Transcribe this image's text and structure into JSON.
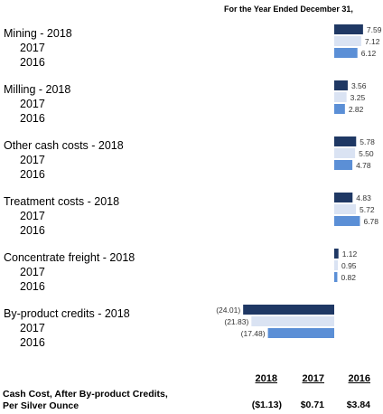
{
  "chart_data": {
    "type": "bar",
    "orientation": "horizontal",
    "header": "For the Year Ended December 31,",
    "year_labels": [
      "2017",
      "2016"
    ],
    "categories": [
      {
        "label": "Mining  - 2018",
        "values": [
          7.59,
          7.12,
          6.12
        ],
        "value_labels": [
          "7.59",
          "7.12",
          "6.12"
        ]
      },
      {
        "label": "Milling  - 2018",
        "values": [
          3.56,
          3.25,
          2.82
        ],
        "value_labels": [
          "3.56",
          "3.25",
          "2.82"
        ]
      },
      {
        "label": "Other cash costs  - 2018",
        "values": [
          5.78,
          5.5,
          4.78
        ],
        "value_labels": [
          "5.78",
          "5.50",
          "4.78"
        ]
      },
      {
        "label": "Treatment costs  - 2018",
        "values": [
          4.83,
          5.72,
          6.78
        ],
        "value_labels": [
          "4.83",
          "5.72",
          "6.78"
        ]
      },
      {
        "label": "Concentrate freight  - 2018",
        "values": [
          1.12,
          0.95,
          0.82
        ],
        "value_labels": [
          "1.12",
          "0.95",
          "0.82"
        ]
      },
      {
        "label": "By-product credits  - 2018",
        "values": [
          -24.01,
          -21.83,
          -17.48
        ],
        "value_labels": [
          "(24.01)",
          "(21.83)",
          "(17.48)"
        ]
      }
    ],
    "series_colors": [
      "#1f3864",
      "#dae3f3",
      "#5b8fd6"
    ],
    "grid": false,
    "legend": "none"
  },
  "summary": {
    "label_line1": "Cash Cost, After By-product Credits,",
    "label_line2": "Per Silver Ounce",
    "years": [
      "2018",
      "2017",
      "2016"
    ],
    "values": [
      "($1.13)",
      "$0.71",
      "$3.84"
    ]
  }
}
